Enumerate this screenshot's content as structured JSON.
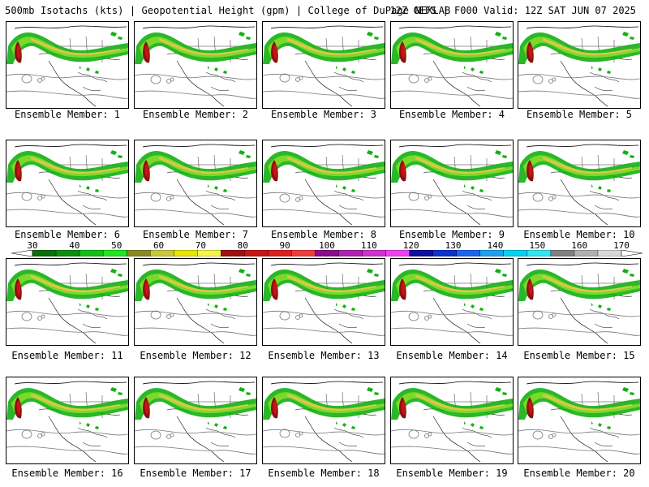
{
  "header": {
    "title_left": "500mb Isotachs (kts) | Geopotential Height (gpm) | College of DuPage NEXLAB",
    "title_right": "12Z GEFS | F000 Valid: 12Z SAT JUN 07 2025"
  },
  "panels": [
    {
      "label": "Ensemble Member: 1"
    },
    {
      "label": "Ensemble Member: 2"
    },
    {
      "label": "Ensemble Member: 3"
    },
    {
      "label": "Ensemble Member: 4"
    },
    {
      "label": "Ensemble Member: 5"
    },
    {
      "label": "Ensemble Member: 6"
    },
    {
      "label": "Ensemble Member: 7"
    },
    {
      "label": "Ensemble Member: 8"
    },
    {
      "label": "Ensemble Member: 9"
    },
    {
      "label": "Ensemble Member: 10"
    },
    {
      "label": "Ensemble Member: 11"
    },
    {
      "label": "Ensemble Member: 12"
    },
    {
      "label": "Ensemble Member: 13"
    },
    {
      "label": "Ensemble Member: 14"
    },
    {
      "label": "Ensemble Member: 15"
    },
    {
      "label": "Ensemble Member: 16"
    },
    {
      "label": "Ensemble Member: 17"
    },
    {
      "label": "Ensemble Member: 18"
    },
    {
      "label": "Ensemble Member: 19"
    },
    {
      "label": "Ensemble Member: 20"
    }
  ],
  "colorbar": {
    "labels": [
      "30",
      "40",
      "50",
      "60",
      "70",
      "80",
      "90",
      "100",
      "110",
      "120",
      "130",
      "140",
      "150",
      "160",
      "170"
    ],
    "colors": [
      "#0a6e0a",
      "#0b8f0b",
      "#15c015",
      "#1ee81e",
      "#8a8a1e",
      "#c8c83c",
      "#e6e600",
      "#f5f54a",
      "#a01010",
      "#c81414",
      "#e01e1e",
      "#f03c3c",
      "#8c0a8c",
      "#b020b0",
      "#d030d0",
      "#f040f0",
      "#1010a0",
      "#1030d0",
      "#1e64f0",
      "#1ea0f0",
      "#00d2f0",
      "#30e6f5",
      "#808080",
      "#b0b0b0",
      "#d8d8d8"
    ]
  }
}
